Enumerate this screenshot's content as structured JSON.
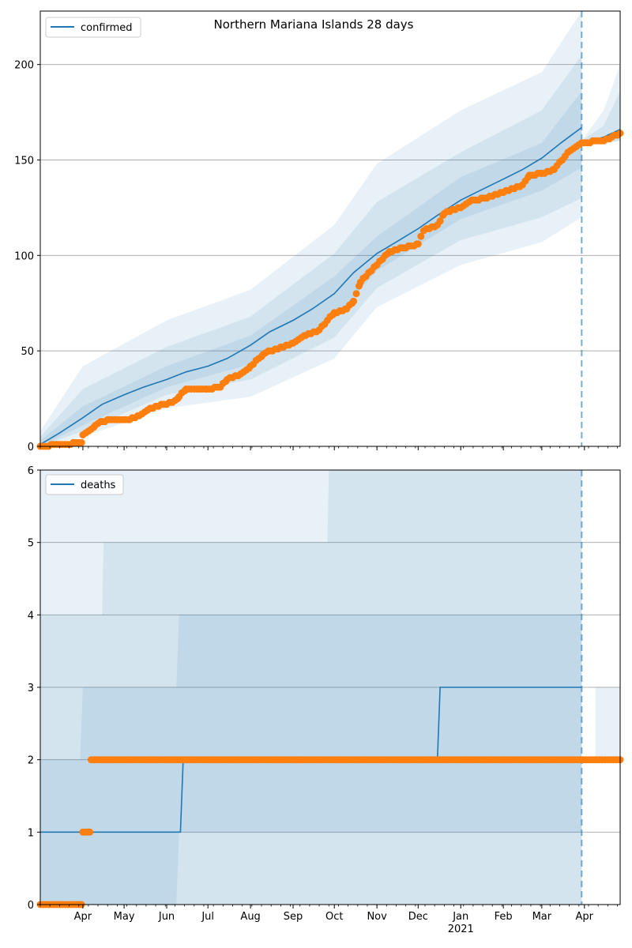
{
  "title": "Northern Mariana Islands 28 days",
  "colors": {
    "model": "#1f77b4",
    "observed": "#ff7f0e",
    "band": "#1f77b4",
    "grid": "#b0b0b0",
    "forecast_line": "#1f77b4"
  },
  "x_axis": {
    "start": "2020-03-01",
    "end": "2021-04-27",
    "forecast_date": "2021-03-30",
    "month_labels": [
      {
        "date": "2020-04-01",
        "label": "Apr"
      },
      {
        "date": "2020-05-01",
        "label": "May"
      },
      {
        "date": "2020-06-01",
        "label": "Jun"
      },
      {
        "date": "2020-07-01",
        "label": "Jul"
      },
      {
        "date": "2020-08-01",
        "label": "Aug"
      },
      {
        "date": "2020-09-01",
        "label": "Sep"
      },
      {
        "date": "2020-10-01",
        "label": "Oct"
      },
      {
        "date": "2020-11-01",
        "label": "Nov"
      },
      {
        "date": "2020-12-01",
        "label": "Dec"
      },
      {
        "date": "2021-01-01",
        "label": "Jan"
      },
      {
        "date": "2021-02-01",
        "label": "Feb"
      },
      {
        "date": "2021-03-01",
        "label": "Mar"
      },
      {
        "date": "2021-04-01",
        "label": "Apr"
      }
    ],
    "year_label": {
      "date": "2021-01-01",
      "label": "2021"
    }
  },
  "chart_data": [
    {
      "type": "line",
      "title": "Northern Mariana Islands 28 days",
      "legend": {
        "label": "confirmed",
        "placement": "top-left"
      },
      "ylim": [
        0,
        228
      ],
      "yticks": [
        0,
        50,
        100,
        150,
        200
      ],
      "grid": "horizontal",
      "series": [
        {
          "name": "confirmed",
          "kind": "model-line",
          "x": [
            "2020-03-01",
            "2020-03-15",
            "2020-04-01",
            "2020-04-15",
            "2020-05-01",
            "2020-05-15",
            "2020-06-01",
            "2020-06-15",
            "2020-07-01",
            "2020-07-15",
            "2020-08-01",
            "2020-08-15",
            "2020-09-01",
            "2020-09-15",
            "2020-10-01",
            "2020-10-15",
            "2020-11-01",
            "2020-11-15",
            "2020-12-01",
            "2020-12-15",
            "2021-01-01",
            "2021-01-15",
            "2021-02-01",
            "2021-02-15",
            "2021-03-01",
            "2021-03-15",
            "2021-03-30",
            "2021-04-01",
            "2021-04-15",
            "2021-04-27"
          ],
          "y": [
            1,
            7,
            15,
            22,
            27,
            31,
            35,
            39,
            42,
            46,
            53,
            60,
            66,
            72,
            80,
            91,
            101,
            107,
            114,
            121,
            129,
            134,
            140,
            145,
            151,
            159,
            167,
            159,
            162,
            166
          ]
        },
        {
          "name": "observed",
          "kind": "observed-points",
          "x": [
            "2020-03-01",
            "2020-03-31",
            "2020-04-01",
            "2020-04-05",
            "2020-04-10",
            "2020-04-15",
            "2020-04-20",
            "2020-05-05",
            "2020-05-12",
            "2020-05-20",
            "2020-06-05",
            "2020-06-10",
            "2020-06-15",
            "2020-06-30",
            "2020-07-10",
            "2020-07-15",
            "2020-07-25",
            "2020-08-01",
            "2020-08-10",
            "2020-08-15",
            "2020-09-01",
            "2020-09-10",
            "2020-09-20",
            "2020-10-01",
            "2020-10-10",
            "2020-10-15",
            "2020-10-20",
            "2020-11-01",
            "2020-11-10",
            "2020-11-20",
            "2020-12-01",
            "2020-12-05",
            "2020-12-15",
            "2020-12-20",
            "2021-01-01",
            "2021-01-10",
            "2021-01-20",
            "2021-02-01",
            "2021-02-15",
            "2021-02-20",
            "2021-03-01",
            "2021-03-10",
            "2021-03-20",
            "2021-03-30",
            "2021-04-15",
            "2021-04-27"
          ],
          "y": [
            0,
            2,
            6,
            8,
            11,
            13,
            14,
            14,
            16,
            20,
            23,
            26,
            30,
            30,
            31,
            35,
            38,
            42,
            48,
            50,
            54,
            58,
            61,
            70,
            72,
            76,
            86,
            95,
            102,
            104,
            106,
            113,
            116,
            122,
            125,
            129,
            130,
            133,
            137,
            142,
            143,
            145,
            154,
            159,
            160,
            164
          ]
        }
      ],
      "bands": [
        {
          "level": "outer",
          "x": [
            "2020-03-01",
            "2020-04-01",
            "2020-06-01",
            "2020-08-01",
            "2020-10-01",
            "2020-11-01",
            "2021-01-01",
            "2021-03-01",
            "2021-03-30"
          ],
          "low": [
            0,
            5,
            20,
            26,
            46,
            73,
            95,
            107,
            120
          ],
          "high": [
            8,
            42,
            66,
            82,
            116,
            148,
            176,
            196,
            228
          ]
        },
        {
          "level": "middle",
          "x": [
            "2020-03-01",
            "2020-04-01",
            "2020-06-01",
            "2020-08-01",
            "2020-10-01",
            "2020-11-01",
            "2021-01-01",
            "2021-03-01",
            "2021-03-30"
          ],
          "low": [
            0,
            8,
            27,
            35,
            57,
            83,
            108,
            120,
            130
          ],
          "high": [
            5,
            30,
            52,
            68,
            101,
            128,
            154,
            176,
            205
          ]
        },
        {
          "level": "inner",
          "x": [
            "2020-03-01",
            "2020-04-01",
            "2020-06-01",
            "2020-08-01",
            "2020-10-01",
            "2020-11-01",
            "2021-01-01",
            "2021-03-01",
            "2021-03-30"
          ],
          "low": [
            0,
            11,
            31,
            43,
            67,
            92,
            119,
            134,
            146
          ],
          "high": [
            3,
            21,
            42,
            58,
            89,
            110,
            141,
            159,
            186
          ]
        },
        {
          "level": "outer",
          "x": [
            "2021-03-30",
            "2021-04-15",
            "2021-04-27"
          ],
          "low": [
            158,
            159,
            160
          ],
          "high": [
            160,
            176,
            200
          ]
        },
        {
          "level": "middle",
          "x": [
            "2021-03-30",
            "2021-04-15",
            "2021-04-27"
          ],
          "low": [
            158,
            159,
            160
          ],
          "high": [
            160,
            168,
            186
          ]
        }
      ]
    },
    {
      "type": "line",
      "legend": {
        "label": "deaths",
        "placement": "top-left"
      },
      "ylim": [
        0,
        6
      ],
      "yticks": [
        0,
        1,
        2,
        3,
        4,
        5,
        6
      ],
      "grid": "horizontal",
      "series": [
        {
          "name": "deaths",
          "kind": "model-line",
          "x": [
            "2020-03-01",
            "2020-06-11",
            "2020-06-13",
            "2020-12-15",
            "2020-12-17",
            "2021-03-30"
          ],
          "y": [
            1,
            1,
            2,
            2,
            3,
            3
          ]
        },
        {
          "name": "observed",
          "kind": "observed-points",
          "x": [
            "2020-03-01",
            "2020-03-31",
            "2020-04-01",
            "2020-04-06",
            "2020-04-07",
            "2021-04-27"
          ],
          "y": [
            0,
            0,
            1,
            1,
            2,
            2
          ]
        }
      ],
      "bands": [
        {
          "level": "outer",
          "x": [
            "2020-03-01",
            "2020-04-15",
            "2020-04-16",
            "2020-09-15",
            "2020-09-16",
            "2021-03-30"
          ],
          "low": [
            0,
            0,
            0,
            0,
            0,
            0
          ],
          "high": [
            6,
            6,
            6,
            6,
            6,
            6
          ]
        },
        {
          "level": "middle",
          "x": [
            "2020-03-01",
            "2020-04-15",
            "2020-04-16",
            "2020-09-26",
            "2020-09-27",
            "2021-02-28",
            "2021-03-01",
            "2021-03-30"
          ],
          "low": [
            0,
            0,
            0,
            0,
            0,
            0,
            0,
            0
          ],
          "high": [
            4,
            4,
            5,
            5,
            6,
            6,
            6,
            6
          ]
        },
        {
          "level": "inner",
          "x": [
            "2020-03-01",
            "2020-03-30",
            "2020-04-01",
            "2020-06-08",
            "2020-06-10",
            "2021-02-20",
            "2021-02-22",
            "2021-03-30"
          ],
          "low": [
            0,
            0,
            0,
            0,
            1,
            1,
            1,
            1
          ],
          "high": [
            2,
            2,
            3,
            3,
            4,
            4,
            4,
            4
          ]
        },
        {
          "level": "outer",
          "x": [
            "2021-04-09",
            "2021-04-27"
          ],
          "low": [
            2,
            2
          ],
          "high": [
            3,
            3
          ]
        }
      ]
    }
  ]
}
